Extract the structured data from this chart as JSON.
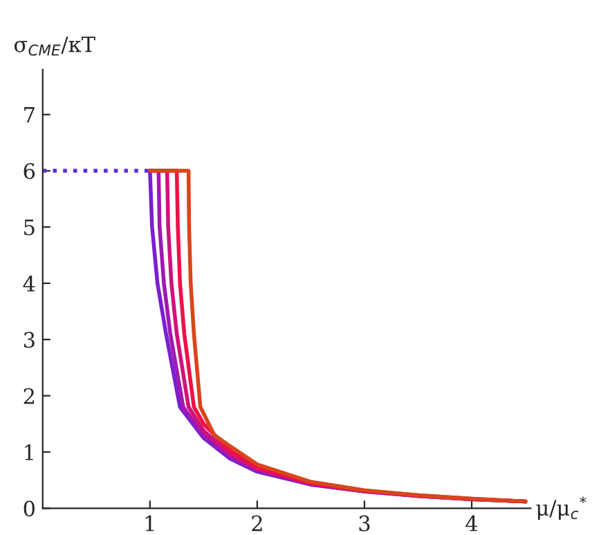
{
  "chart_data": {
    "type": "line",
    "xlabel": "μ/μ$_{c}$$^{*}$",
    "ylabel": "σ$_{CME}$/κT",
    "xlim": [
      0,
      4.55
    ],
    "ylim": [
      0,
      7.8
    ],
    "xticks": [
      1,
      2,
      3,
      4
    ],
    "yticks": [
      0,
      1,
      2,
      3,
      4,
      5,
      6,
      7
    ],
    "grid": false,
    "legend": false,
    "marker": "none",
    "series": [
      {
        "color": "#5a2be0",
        "line_style": "dotted",
        "x": [
          0,
          1.0
        ],
        "values": [
          6,
          6
        ]
      },
      {
        "color": "#7a1fd0",
        "x": [
          1.0,
          1.02,
          1.07,
          1.15,
          1.28,
          1.5,
          1.75,
          2,
          2.5,
          3,
          3.5,
          4,
          4.5
        ],
        "values": [
          6,
          5,
          4,
          3.1,
          1.8,
          1.25,
          0.88,
          0.65,
          0.42,
          0.3,
          0.22,
          0.16,
          0.12
        ]
      },
      {
        "color": "#a018b0",
        "x": [
          1.0,
          1.08,
          1.09,
          1.13,
          1.19,
          1.31,
          1.5,
          1.75,
          2,
          2.5,
          3,
          3.5,
          4,
          4.5
        ],
        "values": [
          6,
          6,
          5,
          4,
          3.1,
          1.8,
          1.3,
          0.92,
          0.68,
          0.43,
          0.3,
          0.22,
          0.16,
          0.12
        ]
      },
      {
        "color": "#d0127a",
        "x": [
          1.0,
          1.16,
          1.17,
          1.2,
          1.25,
          1.36,
          1.5,
          1.75,
          2,
          2.5,
          3,
          3.5,
          4,
          4.5
        ],
        "values": [
          6,
          6,
          5,
          4,
          3.1,
          1.8,
          1.38,
          0.96,
          0.7,
          0.44,
          0.31,
          0.22,
          0.16,
          0.12
        ]
      },
      {
        "color": "#f01048",
        "x": [
          1.0,
          1.25,
          1.26,
          1.28,
          1.32,
          1.41,
          1.5,
          1.75,
          2,
          2.5,
          3,
          3.5,
          4,
          4.5
        ],
        "values": [
          6,
          6,
          5,
          4,
          3.1,
          1.8,
          1.5,
          1.02,
          0.73,
          0.45,
          0.31,
          0.23,
          0.17,
          0.12
        ]
      },
      {
        "color": "#d8461a",
        "x": [
          1.0,
          1.36,
          1.365,
          1.38,
          1.41,
          1.47,
          1.6,
          1.75,
          2,
          2.5,
          3,
          3.5,
          4,
          4.5
        ],
        "values": [
          6,
          6,
          5,
          4,
          3.1,
          1.8,
          1.3,
          1.1,
          0.78,
          0.47,
          0.32,
          0.23,
          0.17,
          0.12
        ]
      }
    ]
  }
}
